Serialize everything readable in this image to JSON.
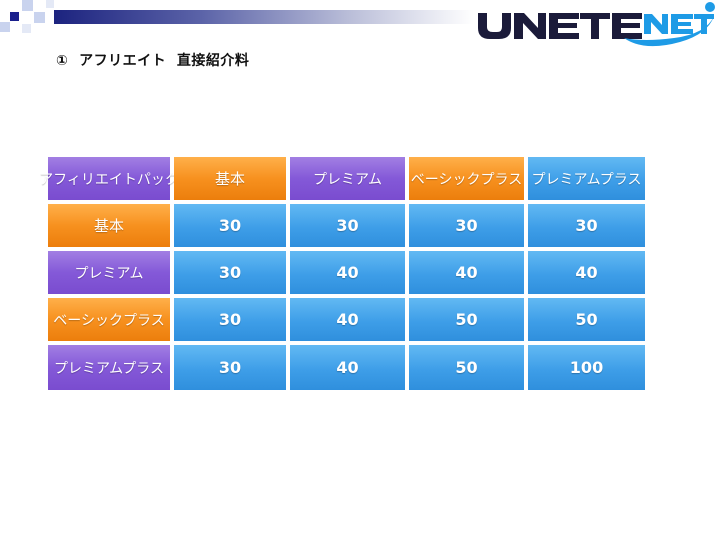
{
  "slide": {
    "title": "①  アフリエイト  直接紹介料"
  },
  "logo": {
    "text": "UNETENET",
    "colors": {
      "dark": "#1b1b3a",
      "blue": "#1e9be6"
    }
  },
  "table": {
    "corner_label": "アフィリエイトパック",
    "columns": [
      "基本",
      "プレミアム",
      "ベーシックプラス",
      "プレミアムプラス"
    ],
    "rows": [
      {
        "label": "基本",
        "values": [
          "30",
          "30",
          "30",
          "30"
        ]
      },
      {
        "label": "プレミアム",
        "values": [
          "30",
          "40",
          "40",
          "40"
        ]
      },
      {
        "label": "ベーシックプラス",
        "values": [
          "30",
          "40",
          "50",
          "50"
        ]
      },
      {
        "label": "プレミアムプラス",
        "values": [
          "30",
          "40",
          "50",
          "100"
        ]
      }
    ],
    "colors": {
      "purple": "#8459d8",
      "orange": "#f7911f",
      "blue": "#3e9ee8"
    }
  }
}
